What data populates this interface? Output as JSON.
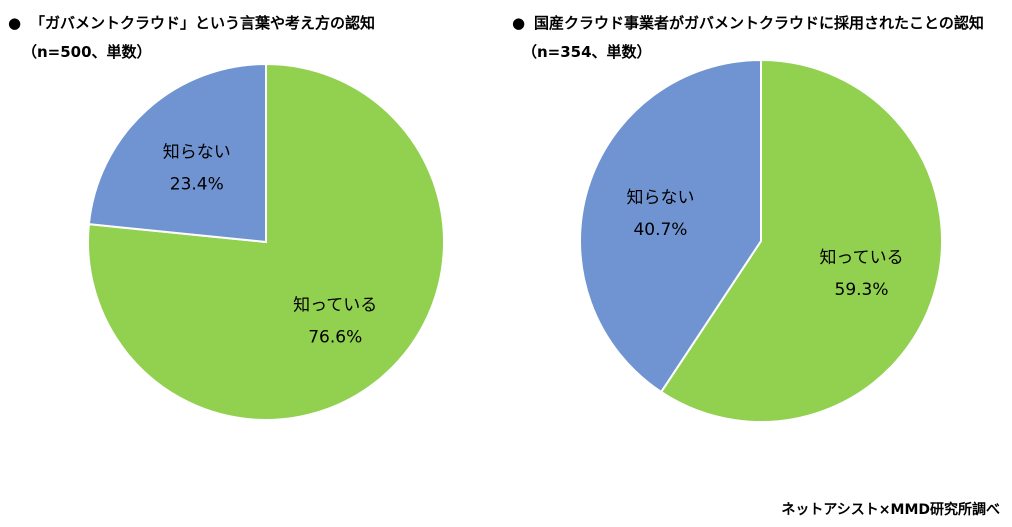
{
  "chart_data": [
    {
      "type": "pie",
      "title": "「ガバメントクラウド」という言葉や考え方の認知",
      "subtitle": "（n=500、単数）",
      "slices": [
        {
          "label": "知っている",
          "value": 76.6,
          "value_label": "76.6%",
          "color": "#92d050"
        },
        {
          "label": "知らない",
          "value": 23.4,
          "value_label": "23.4%",
          "color": "#7094d2"
        }
      ]
    },
    {
      "type": "pie",
      "title": "国産クラウド事業者がガバメントクラウドに採用されたことの認知",
      "subtitle": "（n=354、単数）",
      "slices": [
        {
          "label": "知っている",
          "value": 59.3,
          "value_label": "59.3%",
          "color": "#92d050"
        },
        {
          "label": "知らない",
          "value": 40.7,
          "value_label": "40.7%",
          "color": "#7094d2"
        }
      ]
    }
  ],
  "bullet": "●",
  "credit": "ネットアシスト×MMD研究所調べ"
}
